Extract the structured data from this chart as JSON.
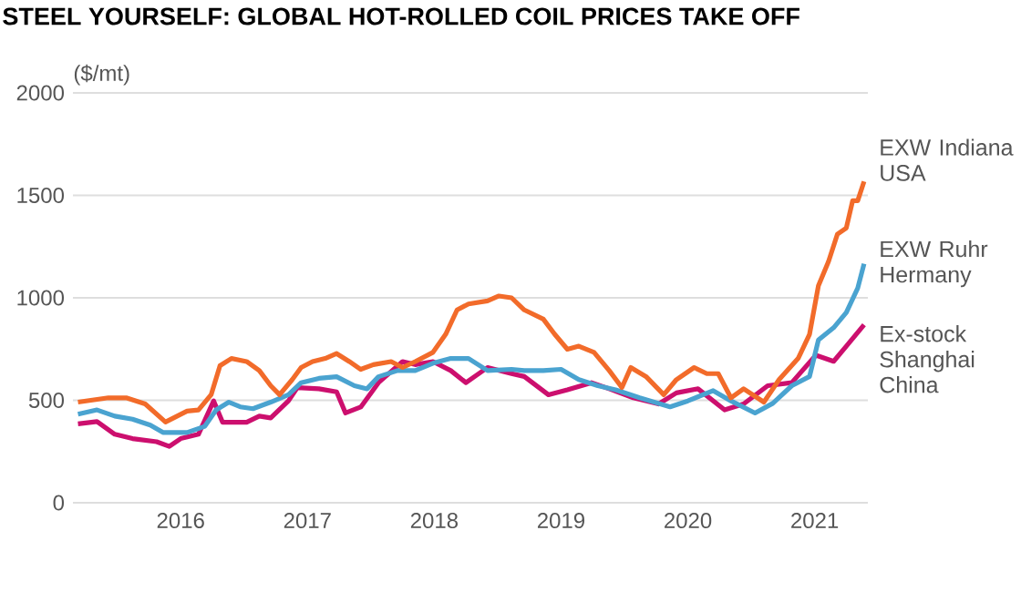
{
  "chart_data": {
    "type": "line",
    "title": "STEEL YOURSELF: GLOBAL HOT-ROLLED COIL PRICES TAKE OFF",
    "ylabel": "($/mt)",
    "xlim": [
      2015.15,
      2021.42
    ],
    "xticks": [
      2016,
      2017,
      2018,
      2019,
      2020,
      2021
    ],
    "ylim": [
      0,
      2000
    ],
    "yticks": [
      0,
      500,
      1000,
      1500,
      2000
    ],
    "grid": "y",
    "series": [
      {
        "name": "EXW Indiana USA",
        "color": "#f26b2a",
        "x": [
          2015.19,
          2015.43,
          2015.57,
          2015.72,
          2015.88,
          2016.05,
          2016.14,
          2016.24,
          2016.31,
          2016.4,
          2016.52,
          2016.62,
          2016.71,
          2016.78,
          2016.88,
          2016.95,
          2017.04,
          2017.14,
          2017.23,
          2017.33,
          2017.42,
          2017.52,
          2017.66,
          2017.75,
          2017.85,
          2017.99,
          2018.09,
          2018.18,
          2018.27,
          2018.42,
          2018.51,
          2018.61,
          2018.71,
          2018.86,
          2018.95,
          2019.05,
          2019.14,
          2019.26,
          2019.38,
          2019.48,
          2019.55,
          2019.67,
          2019.81,
          2019.91,
          2020.05,
          2020.15,
          2020.24,
          2020.34,
          2020.44,
          2020.6,
          2020.72,
          2020.87,
          2020.96,
          2021.03,
          2021.11,
          2021.18,
          2021.25,
          2021.3,
          2021.34,
          2021.39
        ],
        "values": [
          491,
          512,
          512,
          482,
          394,
          447,
          453,
          527,
          669,
          704,
          689,
          645,
          571,
          527,
          601,
          660,
          689,
          704,
          728,
          689,
          651,
          674,
          689,
          660,
          689,
          734,
          822,
          941,
          970,
          985,
          1009,
          1000,
          941,
          896,
          822,
          749,
          764,
          734,
          645,
          562,
          660,
          616,
          527,
          601,
          660,
          630,
          630,
          512,
          556,
          491,
          601,
          704,
          822,
          1059,
          1178,
          1311,
          1341,
          1474,
          1474,
          1568
        ]
      },
      {
        "name": "EXW Ruhr Hermany",
        "color": "#4aa3d0",
        "x": [
          2015.19,
          2015.34,
          2015.48,
          2015.62,
          2015.76,
          2015.86,
          2016.05,
          2016.19,
          2016.28,
          2016.38,
          2016.47,
          2016.57,
          2016.71,
          2016.85,
          2016.95,
          2017.09,
          2017.23,
          2017.37,
          2017.47,
          2017.56,
          2017.71,
          2017.85,
          2017.99,
          2018.13,
          2018.27,
          2018.42,
          2018.61,
          2018.71,
          2018.86,
          2019.0,
          2019.14,
          2019.29,
          2019.43,
          2019.62,
          2019.86,
          2020.0,
          2020.2,
          2020.34,
          2020.53,
          2020.67,
          2020.82,
          2020.96,
          2021.03,
          2021.15,
          2021.25,
          2021.34,
          2021.39
        ],
        "values": [
          432,
          453,
          423,
          408,
          379,
          343,
          343,
          373,
          453,
          491,
          468,
          459,
          491,
          527,
          586,
          607,
          615,
          571,
          556,
          615,
          645,
          645,
          681,
          704,
          704,
          645,
          651,
          645,
          645,
          651,
          601,
          571,
          551,
          512,
          468,
          497,
          547,
          497,
          438,
          485,
          571,
          616,
          794,
          854,
          928,
          1047,
          1166
        ]
      },
      {
        "name": "Ex-stock Shanghai China",
        "color": "#cc0f6e",
        "x": [
          2015.19,
          2015.34,
          2015.48,
          2015.62,
          2015.81,
          2015.91,
          2016.0,
          2016.14,
          2016.26,
          2016.33,
          2016.52,
          2016.62,
          2016.71,
          2016.85,
          2016.92,
          2017.09,
          2017.23,
          2017.3,
          2017.42,
          2017.56,
          2017.75,
          2017.85,
          2017.99,
          2018.13,
          2018.25,
          2018.42,
          2018.61,
          2018.71,
          2018.9,
          2019.05,
          2019.24,
          2019.38,
          2019.57,
          2019.77,
          2019.91,
          2020.08,
          2020.29,
          2020.44,
          2020.63,
          2020.82,
          2021.01,
          2021.15,
          2021.25,
          2021.39
        ],
        "values": [
          385,
          396,
          334,
          313,
          298,
          275,
          313,
          334,
          497,
          393,
          393,
          423,
          414,
          497,
          562,
          556,
          541,
          438,
          467,
          586,
          689,
          674,
          689,
          645,
          586,
          660,
          630,
          616,
          527,
          551,
          586,
          556,
          512,
          482,
          536,
          556,
          453,
          482,
          571,
          586,
          720,
          690,
          764,
          868
        ]
      }
    ]
  }
}
